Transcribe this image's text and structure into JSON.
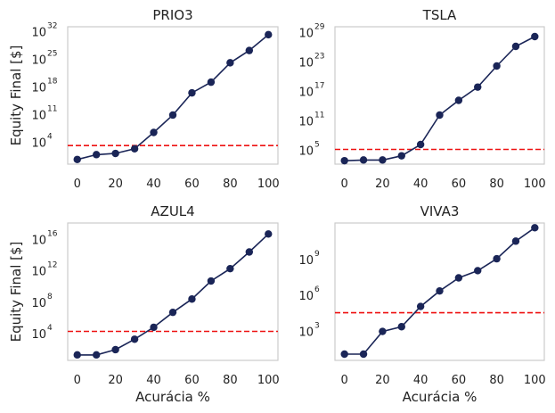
{
  "chart_data": [
    {
      "type": "line",
      "title": "PRIO3",
      "xlabel": "",
      "ylabel": "Equity Final [$]",
      "yscale": "log",
      "ylim": [
        0.02,
        1e+33
      ],
      "xlim": [
        -5,
        105
      ],
      "xticks": [
        0,
        20,
        40,
        60,
        80,
        100
      ],
      "yticks": [
        {
          "base": "10",
          "exp": "4",
          "value": 10000.0
        },
        {
          "base": "10",
          "exp": "11",
          "value": 100000000000.0
        },
        {
          "base": "10",
          "exp": "18",
          "value": 1e+18
        },
        {
          "base": "10",
          "exp": "25",
          "value": 1e+25
        },
        {
          "base": "10",
          "exp": "32",
          "value": 1e+32
        }
      ],
      "series": [
        {
          "x": [
            0,
            10,
            20,
            30,
            40,
            50,
            60,
            70,
            80,
            90,
            100
          ],
          "y": [
            0.3,
            5,
            10,
            150,
            2000000.0,
            50000000000.0,
            2e+16,
            1e+19,
            8e+23,
            1e+27,
            1e+31
          ]
        }
      ],
      "threshold": 1000.0,
      "grid": false
    },
    {
      "type": "line",
      "title": "TSLA",
      "xlabel": "",
      "ylabel": "",
      "yscale": "log",
      "ylim": [
        100.0,
        1e+30
      ],
      "xlim": [
        -5,
        105
      ],
      "xticks": [
        0,
        20,
        40,
        60,
        80,
        100
      ],
      "yticks": [
        {
          "base": "10",
          "exp": "5",
          "value": 100000.0
        },
        {
          "base": "10",
          "exp": "11",
          "value": 100000000000.0
        },
        {
          "base": "10",
          "exp": "17",
          "value": 1e+17
        },
        {
          "base": "10",
          "exp": "23",
          "value": 1e+23
        },
        {
          "base": "10",
          "exp": "29",
          "value": 1e+29
        }
      ],
      "series": [
        {
          "x": [
            0,
            10,
            20,
            30,
            40,
            50,
            60,
            70,
            80,
            90,
            100
          ],
          "y": [
            500,
            700,
            700,
            5000.0,
            1000000.0,
            1000000000000.0,
            1000000000000000.0,
            5e+17,
            1e+22,
            1e+26,
            1e+28
          ]
        }
      ],
      "threshold": 100000.0,
      "grid": false
    },
    {
      "type": "line",
      "title": "AZUL4",
      "xlabel": "Acurácia %",
      "ylabel": "Equity Final [$]",
      "yscale": "log",
      "ylim": [
        3,
        1e+18
      ],
      "xlim": [
        -5,
        105
      ],
      "xticks": [
        0,
        20,
        40,
        60,
        80,
        100
      ],
      "yticks": [
        {
          "base": "10",
          "exp": "4",
          "value": 10000.0
        },
        {
          "base": "10",
          "exp": "8",
          "value": 100000000.0
        },
        {
          "base": "10",
          "exp": "12",
          "value": 1000000000000.0
        },
        {
          "base": "10",
          "exp": "16",
          "value": 1e+16
        }
      ],
      "series": [
        {
          "x": [
            0,
            10,
            20,
            30,
            40,
            50,
            60,
            70,
            80,
            90,
            100
          ],
          "y": [
            15,
            15,
            70,
            1500,
            50000.0,
            4000000.0,
            200000000.0,
            40000000000.0,
            1500000000000.0,
            200000000000000.0,
            4e+16
          ]
        }
      ],
      "threshold": 15000.0,
      "grid": false
    },
    {
      "type": "line",
      "title": "VIVA3",
      "xlabel": "Acurácia %",
      "ylabel": "",
      "yscale": "log",
      "ylim": [
        3,
        1000000000000.0
      ],
      "xlim": [
        -5,
        105
      ],
      "xticks": [
        0,
        20,
        40,
        60,
        80,
        100
      ],
      "yticks": [
        {
          "base": "10",
          "exp": "3",
          "value": 1000.0
        },
        {
          "base": "10",
          "exp": "6",
          "value": 1000000.0
        },
        {
          "base": "10",
          "exp": "9",
          "value": 1000000000.0
        }
      ],
      "series": [
        {
          "x": [
            0,
            10,
            20,
            30,
            40,
            50,
            60,
            70,
            80,
            90,
            100
          ],
          "y": [
            10,
            10,
            800,
            2000,
            100000.0,
            2000000.0,
            25000000.0,
            100000000.0,
            1000000000.0,
            30000000000.0,
            400000000000.0
          ]
        }
      ],
      "threshold": 30000.0,
      "grid": false
    }
  ],
  "colors": {
    "line": "#1a2557",
    "threshold": "#ee1111",
    "frame": "#cccccc"
  }
}
